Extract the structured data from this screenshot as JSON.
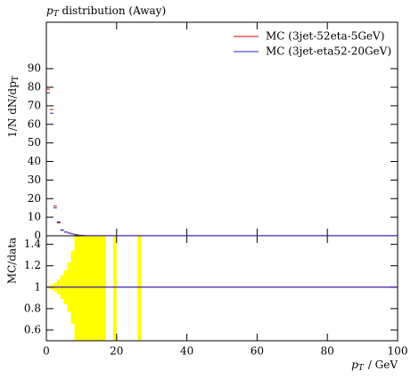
{
  "chart_data": {
    "type": "histogram",
    "title": {
      "symbol": "p",
      "subscript": "T",
      "text": " distribution (Away)"
    },
    "y_label": {
      "text": "1/N dN/dp",
      "subscript": "T"
    },
    "x_label": {
      "symbol": "p",
      "subscript": "T",
      "text": "/ GeV"
    },
    "ratio_label": "MC/data",
    "legend": "upper right",
    "xlim": [
      0,
      100
    ],
    "xticks": [
      0,
      20,
      40,
      60,
      80,
      100
    ],
    "ylim": [
      0,
      115
    ],
    "yticks": [
      0,
      10,
      20,
      30,
      40,
      50,
      60,
      70,
      80,
      90
    ],
    "ratio_ylim": [
      0.5,
      1.48
    ],
    "ratio_yticks": [
      0.6,
      0.8,
      1,
      1.2,
      1.4
    ],
    "bins": [
      0,
      1,
      2,
      3,
      4,
      5,
      6,
      7,
      8,
      9,
      10,
      11,
      100
    ],
    "series": [
      {
        "name": "MC (3jet-52eta-5GeV)",
        "color": "#cc0000",
        "values": [
          79,
          68,
          16,
          7,
          3,
          2,
          1.5,
          1,
          0.5,
          0.3,
          0.2,
          0.05
        ]
      },
      {
        "name": "MC (3jet-eta52-20GeV)",
        "color": "#2222cc",
        "values": [
          77,
          66,
          15,
          7.5,
          3.2,
          2,
          1.4,
          1,
          0.6,
          0.3,
          0.2,
          0.05
        ]
      }
    ],
    "ratio_bins": [
      0,
      100
    ],
    "ratio_series": [
      {
        "color": "#cc0000",
        "values": [
          1
        ]
      },
      {
        "color": "#2222cc",
        "values": [
          1
        ]
      }
    ],
    "error_band": {
      "color": "#ffff00",
      "bins": [
        0,
        1,
        2,
        3,
        4,
        5,
        6,
        7,
        8,
        17,
        19,
        20,
        26,
        27
      ],
      "lower": [
        0.99,
        0.98,
        0.96,
        0.93,
        0.89,
        0.84,
        0.77,
        0.66,
        0,
        null,
        0,
        null,
        0
      ],
      "upper": [
        1.01,
        1.02,
        1.04,
        1.07,
        1.11,
        1.16,
        1.23,
        1.34,
        2,
        null,
        2,
        null,
        2
      ]
    }
  }
}
